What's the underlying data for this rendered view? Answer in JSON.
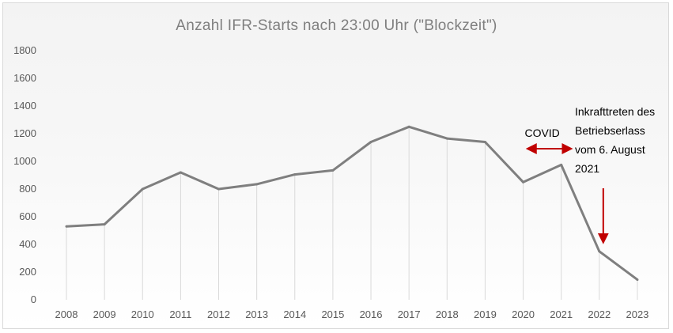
{
  "chart_data": {
    "type": "line",
    "title": "Anzahl IFR-Starts nach 23:00 Uhr (\"Blockzeit\")",
    "xlabel": "",
    "ylabel": "",
    "categories": [
      "2008",
      "2009",
      "2010",
      "2011",
      "2012",
      "2013",
      "2014",
      "2015",
      "2016",
      "2017",
      "2018",
      "2019",
      "2020",
      "2021",
      "2022",
      "2023"
    ],
    "values": [
      530,
      545,
      800,
      920,
      800,
      835,
      905,
      935,
      1140,
      1250,
      1165,
      1140,
      850,
      975,
      350,
      145
    ],
    "ylim": [
      0,
      1800
    ],
    "yticks": [
      "0",
      "200",
      "400",
      "600",
      "800",
      "1000",
      "1200",
      "1400",
      "1600",
      "1800"
    ],
    "grid": "vertical drop lines",
    "legend": "none",
    "colors": {
      "line": "#7f7f7f",
      "dropline": "#d9d9d9",
      "arrow": "#c00000",
      "title": "#7f7f7f"
    },
    "annotations": {
      "covid": {
        "text": "COVID",
        "x_range": [
          "2020",
          "2021"
        ],
        "marker": "double-arrow"
      },
      "law": {
        "lines": [
          "Inkrafttreten des",
          "Betriebserlass",
          "vom 6. August",
          "2021"
        ],
        "x": "2022",
        "marker": "down-arrow"
      }
    }
  }
}
